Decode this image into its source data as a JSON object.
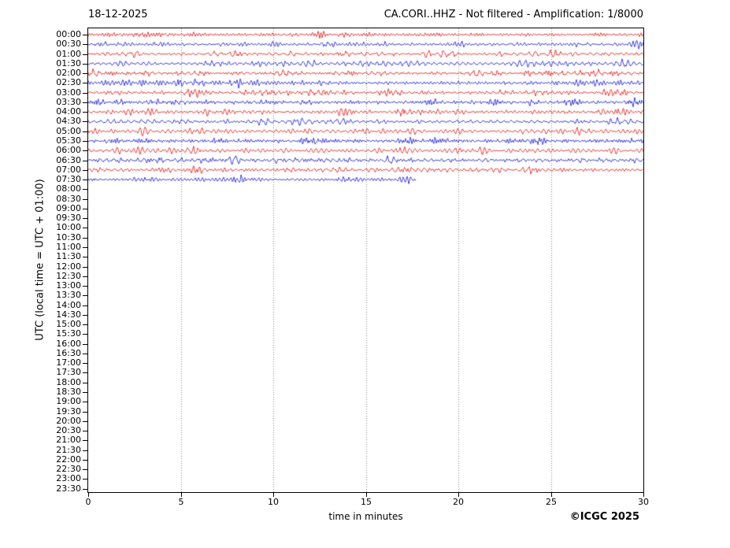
{
  "header": {
    "date_label": "18-12-2025",
    "station_label": "CA.CORI..HHZ - Not filtered - Amplification: 1/8000"
  },
  "footer": {
    "copyright": "©ICGC 2025"
  },
  "chart_data": {
    "type": "line",
    "subtype": "helicorder-seismogram",
    "title_left": "18-12-2025",
    "title_right": "CA.CORI..HHZ - Not filtered - Amplification: 1/8000",
    "xlabel": "time in minutes",
    "ylabel": "UTC (local time = UTC + 01:00)",
    "xlim": [
      0,
      30
    ],
    "x_ticks": [
      0,
      5,
      10,
      15,
      20,
      25,
      30
    ],
    "grid_x": [
      5,
      10,
      15,
      20,
      25
    ],
    "grid_style": "dotted",
    "legend": "none",
    "y_ticks": [
      "00:00",
      "00:30",
      "01:00",
      "01:30",
      "02:00",
      "02:30",
      "03:00",
      "03:30",
      "04:00",
      "04:30",
      "05:00",
      "05:30",
      "06:00",
      "06:30",
      "07:00",
      "07:30",
      "08:00",
      "08:30",
      "09:00",
      "09:30",
      "10:00",
      "10:30",
      "11:00",
      "11:30",
      "12:00",
      "12:30",
      "13:00",
      "13:30",
      "14:00",
      "14:30",
      "15:00",
      "15:30",
      "16:00",
      "16:30",
      "17:00",
      "17:30",
      "18:00",
      "18:30",
      "19:00",
      "19:30",
      "20:00",
      "20:30",
      "21:00",
      "21:30",
      "22:00",
      "22:30",
      "23:00",
      "23:30"
    ],
    "colors": {
      "trace_red": "#e00000",
      "trace_blue": "#0000d0",
      "grid": "#888888",
      "axis": "#000000",
      "background": "#ffffff"
    },
    "rows": [
      {
        "time": "00:00",
        "color": "red",
        "start_min": 0,
        "end_min": 30,
        "amp": 1.0,
        "seed": 3
      },
      {
        "time": "00:30",
        "color": "blue",
        "start_min": 0,
        "end_min": 30,
        "amp": 1.0,
        "seed": 7
      },
      {
        "time": "01:00",
        "color": "red",
        "start_min": 0,
        "end_min": 30,
        "amp": 0.9,
        "seed": 12
      },
      {
        "time": "01:30",
        "color": "blue",
        "start_min": 0,
        "end_min": 30,
        "amp": 1.0,
        "seed": 18
      },
      {
        "time": "02:00",
        "color": "red",
        "start_min": 0,
        "end_min": 30,
        "amp": 1.0,
        "seed": 21
      },
      {
        "time": "02:30",
        "color": "blue",
        "start_min": 0,
        "end_min": 30,
        "amp": 1.15,
        "seed": 25
      },
      {
        "time": "03:00",
        "color": "red",
        "start_min": 0,
        "end_min": 30,
        "amp": 1.0,
        "seed": 31
      },
      {
        "time": "03:30",
        "color": "blue",
        "start_min": 0,
        "end_min": 30,
        "amp": 1.1,
        "seed": 36
      },
      {
        "time": "04:00",
        "color": "red",
        "start_min": 0,
        "end_min": 30,
        "amp": 1.1,
        "seed": 41
      },
      {
        "time": "04:30",
        "color": "blue",
        "start_min": 0,
        "end_min": 30,
        "amp": 1.0,
        "seed": 47
      },
      {
        "time": "05:00",
        "color": "red",
        "start_min": 0,
        "end_min": 30,
        "amp": 1.15,
        "seed": 52
      },
      {
        "time": "05:30",
        "color": "blue",
        "start_min": 0,
        "end_min": 30,
        "amp": 1.25,
        "seed": 58
      },
      {
        "time": "06:00",
        "color": "red",
        "start_min": 0,
        "end_min": 30,
        "amp": 1.3,
        "seed": 63
      },
      {
        "time": "06:30",
        "color": "blue",
        "start_min": 0,
        "end_min": 30,
        "amp": 1.25,
        "seed": 69
      },
      {
        "time": "07:00",
        "color": "red",
        "start_min": 0,
        "end_min": 30,
        "amp": 1.2,
        "seed": 74
      },
      {
        "time": "07:30",
        "color": "blue",
        "start_min": 0,
        "end_min": 17.7,
        "amp": 1.1,
        "seed": 80
      }
    ],
    "empty_rows_from": "08:00"
  }
}
